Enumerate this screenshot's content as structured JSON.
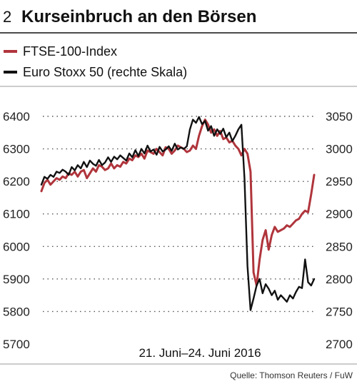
{
  "header": {
    "number": "2",
    "title": "Kurseinbruch an den Börsen"
  },
  "legend": [
    {
      "label": "FTSE-100-Index",
      "color": "#b0353c"
    },
    {
      "label": "Euro Stoxx 50 (rechte Skala)",
      "color": "#111111"
    }
  ],
  "source": "Quelle: Thomson Reuters / FuW",
  "chart_data": {
    "type": "line",
    "title": "Kurseinbruch an den Börsen",
    "xlabel": "21. Juni–24. Juni 2016",
    "y_left": {
      "ticks": [
        "6400",
        "6300",
        "6200",
        "6100",
        "6000",
        "5900",
        "5800",
        "5700"
      ],
      "ylim": [
        5700,
        6400
      ]
    },
    "y_right": {
      "ticks": [
        "3050",
        "3000",
        "2950",
        "2900",
        "2850",
        "2800",
        "2750",
        "2700"
      ],
      "ylim": [
        2700,
        3050
      ]
    },
    "grid": true,
    "legend_position": "top-left",
    "series": [
      {
        "name": "FTSE-100-Index",
        "axis": "left",
        "color": "#b0353c",
        "x": [
          0,
          1,
          2,
          3,
          4,
          5,
          6,
          7,
          8,
          9,
          10,
          11,
          12,
          13,
          14,
          15,
          16,
          17,
          18,
          19,
          20,
          21,
          22,
          23,
          24,
          25,
          26,
          27,
          28,
          29,
          30,
          31,
          32,
          33,
          34,
          35,
          36,
          37,
          38,
          39,
          40,
          41,
          42,
          43,
          44,
          45,
          46,
          47,
          48,
          49,
          50,
          51,
          52,
          53,
          54,
          55,
          56,
          57,
          58,
          59,
          60,
          61,
          62,
          63,
          64,
          65,
          66,
          67,
          68,
          69,
          70,
          71,
          72,
          73,
          74,
          75,
          76,
          77,
          78,
          79,
          80,
          81,
          82,
          83,
          84,
          85,
          86,
          87,
          88,
          89,
          90
        ],
        "y": [
          6170,
          6195,
          6205,
          6190,
          6200,
          6210,
          6205,
          6215,
          6210,
          6225,
          6220,
          6230,
          6215,
          6230,
          6235,
          6210,
          6225,
          6240,
          6230,
          6250,
          6245,
          6235,
          6240,
          6255,
          6240,
          6250,
          6245,
          6260,
          6255,
          6270,
          6265,
          6280,
          6275,
          6285,
          6270,
          6295,
          6290,
          6285,
          6300,
          6290,
          6280,
          6305,
          6300,
          6285,
          6295,
          6310,
          6305,
          6300,
          6290,
          6295,
          6310,
          6300,
          6340,
          6370,
          6390,
          6375,
          6350,
          6360,
          6340,
          6355,
          6330,
          6335,
          6320,
          6325,
          6310,
          6300,
          6280,
          6300,
          6285,
          6230,
          5920,
          5880,
          5960,
          6020,
          6050,
          5990,
          6035,
          6060,
          6045,
          6050,
          6055,
          6065,
          6060,
          6070,
          6080,
          6085,
          6100,
          6110,
          6105,
          6160,
          6220
        ]
      },
      {
        "name": "Euro Stoxx 50 (rechte Skala)",
        "axis": "right",
        "color": "#111111",
        "x": [
          0,
          1,
          2,
          3,
          4,
          5,
          6,
          7,
          8,
          9,
          10,
          11,
          12,
          13,
          14,
          15,
          16,
          17,
          18,
          19,
          20,
          21,
          22,
          23,
          24,
          25,
          26,
          27,
          28,
          29,
          30,
          31,
          32,
          33,
          34,
          35,
          36,
          37,
          38,
          39,
          40,
          41,
          42,
          43,
          44,
          45,
          46,
          47,
          48,
          49,
          50,
          51,
          52,
          53,
          54,
          55,
          56,
          57,
          58,
          59,
          60,
          61,
          62,
          63,
          64,
          65,
          66,
          67,
          68,
          69,
          70,
          71,
          72,
          73,
          74,
          75,
          76,
          77,
          78,
          79,
          80,
          81,
          82,
          83,
          84,
          85,
          86,
          87,
          88,
          89,
          90
        ],
        "y": [
          2945,
          2957,
          2954,
          2960,
          2957,
          2965,
          2963,
          2968,
          2965,
          2960,
          2972,
          2967,
          2975,
          2970,
          2980,
          2972,
          2982,
          2977,
          2974,
          2983,
          2975,
          2979,
          2987,
          2980,
          2988,
          2984,
          2990,
          2986,
          2982,
          2993,
          2987,
          2998,
          2989,
          3000,
          2993,
          3005,
          2996,
          2999,
          2991,
          3003,
          2996,
          2999,
          3004,
          2997,
          3008,
          2999,
          3002,
          3000,
          3004,
          3030,
          3045,
          3040,
          3049,
          3038,
          3043,
          3028,
          3035,
          3020,
          3030,
          3023,
          3031,
          3018,
          3025,
          3012,
          3020,
          3030,
          3037,
          2955,
          2820,
          2752,
          2770,
          2790,
          2800,
          2778,
          2792,
          2785,
          2775,
          2782,
          2768,
          2775,
          2770,
          2765,
          2775,
          2770,
          2780,
          2788,
          2786,
          2830,
          2795,
          2790,
          2800
        ]
      }
    ]
  }
}
